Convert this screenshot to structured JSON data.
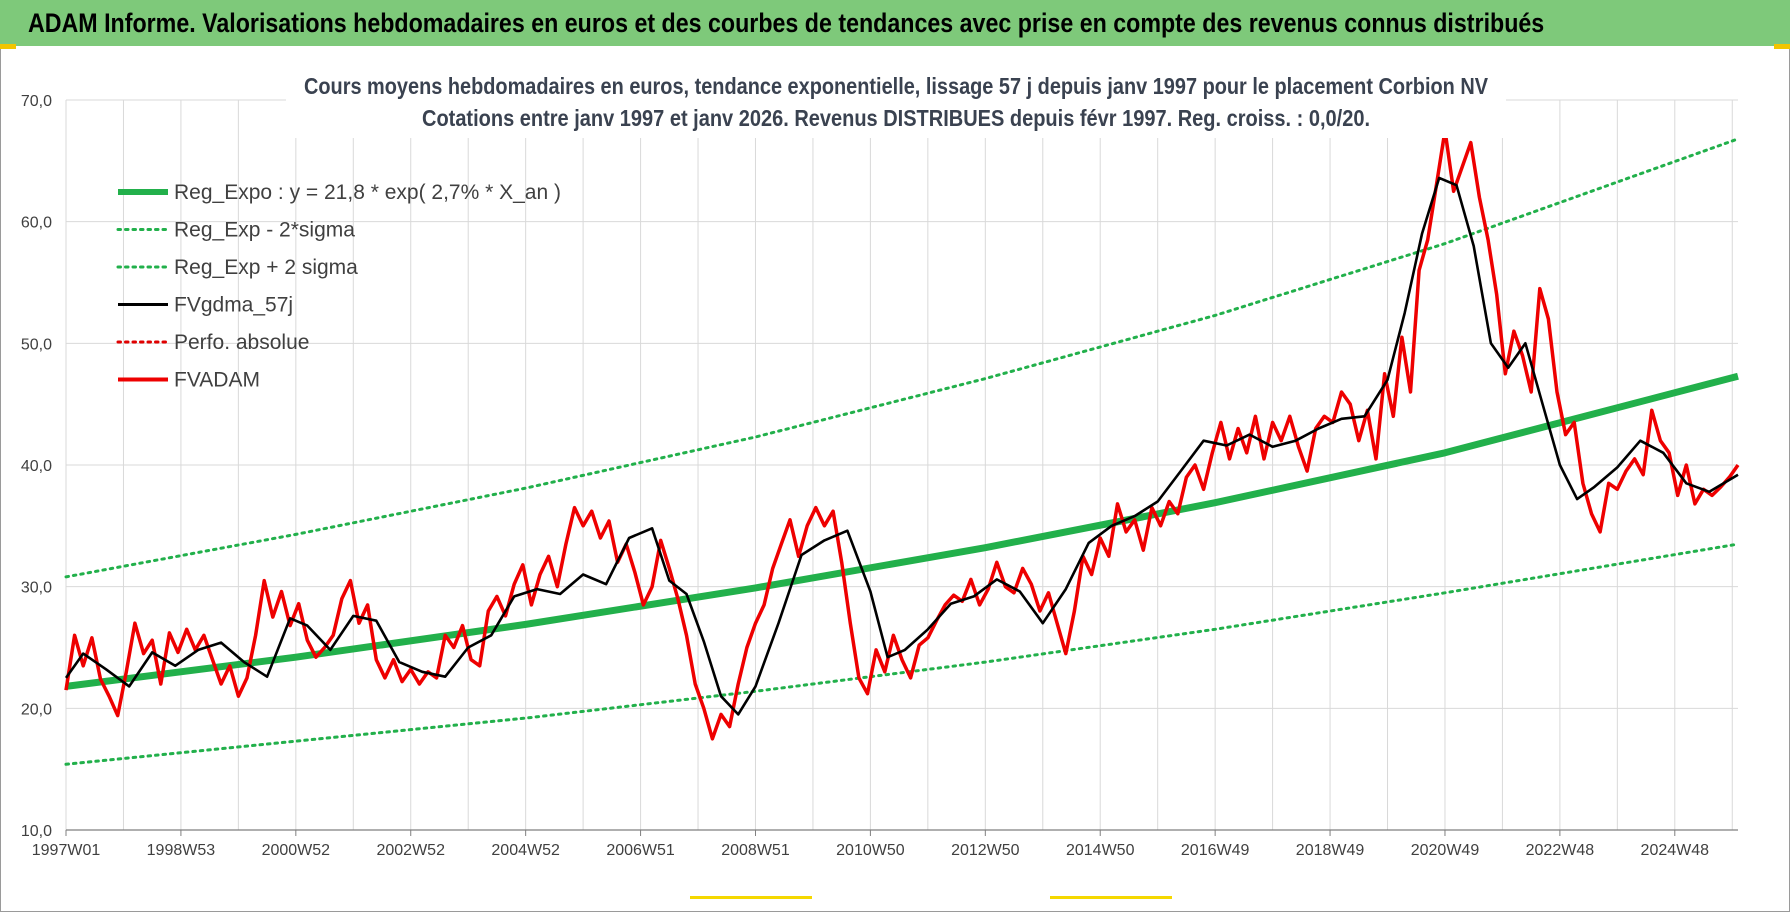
{
  "banner": {
    "title": "ADAM Informe. Valorisations hebdomadaires en euros et des courbes de tendances avec prise en compte des revenus connus distribués",
    "bg_color": "#7ec97a"
  },
  "chart_data": {
    "type": "line",
    "title_line1": "Cours moyens hebdomadaires en euros, tendance exponentielle, lissage 57 j depuis janv 1997 pour le placement Corbion NV",
    "title_line2": "Cotations entre janv 1997 et janv 2026. Revenus DISTRIBUES depuis févr 1997. Reg. croiss. : 0,0/20.",
    "xlim": [
      1997.0,
      2026.1
    ],
    "ylim": [
      10,
      70
    ],
    "y_ticks": [
      "10,0",
      "20,0",
      "30,0",
      "40,0",
      "50,0",
      "60,0",
      "70,0"
    ],
    "y_tick_values": [
      10,
      20,
      30,
      40,
      50,
      60,
      70
    ],
    "x_ticks": [
      "1997W01",
      "1998W53",
      "2000W52",
      "2002W52",
      "2004W52",
      "2006W51",
      "2008W51",
      "2010W50",
      "2012W50",
      "2014W50",
      "2016W49",
      "2018W49",
      "2020W49",
      "2022W48",
      "2024W48"
    ],
    "x_tick_values": [
      1997.0,
      1999.0,
      2001.0,
      2003.0,
      2005.0,
      2007.0,
      2009.0,
      2011.0,
      2013.0,
      2015.0,
      2017.0,
      2019.0,
      2021.0,
      2023.0,
      2025.0
    ],
    "gridlines": true,
    "legend_position": "top-left",
    "series": [
      {
        "name": "Reg_Expo : y = 21,8 * exp( 2,7% *  X_an )",
        "color": "#22b04b",
        "style": "solid-thick",
        "x": [
          1997.0,
          2001.0,
          2005.0,
          2009.0,
          2013.0,
          2017.0,
          2021.0,
          2026.1
        ],
        "values": [
          21.8,
          24.2,
          26.9,
          29.9,
          33.2,
          36.9,
          41.0,
          47.3
        ]
      },
      {
        "name": "Reg_Exp - 2*sigma",
        "color": "#22b04b",
        "style": "dotted",
        "x": [
          1997.0,
          2001.0,
          2005.0,
          2009.0,
          2013.0,
          2017.0,
          2021.0,
          2026.1
        ],
        "values": [
          15.4,
          17.3,
          19.2,
          21.4,
          23.8,
          26.5,
          29.5,
          33.5
        ]
      },
      {
        "name": "Reg_Exp + 2 sigma",
        "color": "#22b04b",
        "style": "dotted",
        "x": [
          1997.0,
          2001.0,
          2005.0,
          2009.0,
          2013.0,
          2017.0,
          2021.0,
          2026.1
        ],
        "values": [
          30.8,
          34.3,
          38.1,
          42.3,
          47.1,
          52.3,
          58.2,
          66.8
        ]
      },
      {
        "name": "FVgdma_57j",
        "color": "#000000",
        "style": "solid",
        "x": [
          1997.0,
          1997.3,
          1997.7,
          1998.1,
          1998.5,
          1998.9,
          1999.3,
          1999.7,
          2000.1,
          2000.5,
          2000.9,
          2001.2,
          2001.6,
          2002.0,
          2002.4,
          2002.8,
          2003.2,
          2003.6,
          2004.0,
          2004.4,
          2004.8,
          2005.2,
          2005.6,
          2006.0,
          2006.4,
          2006.8,
          2007.2,
          2007.5,
          2007.8,
          2008.1,
          2008.4,
          2008.7,
          2009.0,
          2009.4,
          2009.8,
          2010.2,
          2010.6,
          2011.0,
          2011.3,
          2011.6,
          2012.0,
          2012.4,
          2012.8,
          2013.2,
          2013.6,
          2014.0,
          2014.4,
          2014.8,
          2015.2,
          2015.6,
          2016.0,
          2016.4,
          2016.8,
          2017.2,
          2017.6,
          2018.0,
          2018.4,
          2018.8,
          2019.2,
          2019.6,
          2020.0,
          2020.3,
          2020.6,
          2020.9,
          2021.2,
          2021.5,
          2021.8,
          2022.1,
          2022.4,
          2022.7,
          2023.0,
          2023.3,
          2023.6,
          2024.0,
          2024.4,
          2024.8,
          2025.2,
          2025.6,
          2026.1
        ],
        "values": [
          22.5,
          24.5,
          23.2,
          21.8,
          24.6,
          23.5,
          24.8,
          25.4,
          23.8,
          22.6,
          27.4,
          26.8,
          24.8,
          27.6,
          27.2,
          23.8,
          23.0,
          22.6,
          25.0,
          26.0,
          29.2,
          29.8,
          29.4,
          31.0,
          30.2,
          34.0,
          34.8,
          30.5,
          29.4,
          25.5,
          21.0,
          19.5,
          21.8,
          27.0,
          32.6,
          33.8,
          34.6,
          29.6,
          24.2,
          24.8,
          26.5,
          28.6,
          29.2,
          30.6,
          29.6,
          27.0,
          29.8,
          33.6,
          35.0,
          35.8,
          37.0,
          39.5,
          42.0,
          41.6,
          42.5,
          41.5,
          42.0,
          43.0,
          43.8,
          44.0,
          47.0,
          52.5,
          59.0,
          63.6,
          63.0,
          58.0,
          50.0,
          48.0,
          50.0,
          45.0,
          40.0,
          37.2,
          38.2,
          39.8,
          42.0,
          41.0,
          38.5,
          37.8,
          39.2
        ]
      },
      {
        "name": "Perfo. absolue",
        "color": "#e00000",
        "style": "dotted",
        "x": [],
        "values": []
      },
      {
        "name": "FVADAM",
        "color": "#ee0000",
        "style": "solid-thick",
        "x": [
          1997.0,
          1997.15,
          1997.3,
          1997.45,
          1997.6,
          1997.75,
          1997.9,
          1998.05,
          1998.2,
          1998.35,
          1998.5,
          1998.65,
          1998.8,
          1998.95,
          1999.1,
          1999.25,
          1999.4,
          1999.55,
          1999.7,
          1999.85,
          2000.0,
          2000.15,
          2000.3,
          2000.45,
          2000.6,
          2000.75,
          2000.9,
          2001.05,
          2001.2,
          2001.35,
          2001.5,
          2001.65,
          2001.8,
          2001.95,
          2002.1,
          2002.25,
          2002.4,
          2002.55,
          2002.7,
          2002.85,
          2003.0,
          2003.15,
          2003.3,
          2003.45,
          2003.6,
          2003.75,
          2003.9,
          2004.05,
          2004.2,
          2004.35,
          2004.5,
          2004.65,
          2004.8,
          2004.95,
          2005.1,
          2005.25,
          2005.4,
          2005.55,
          2005.7,
          2005.85,
          2006.0,
          2006.15,
          2006.3,
          2006.45,
          2006.6,
          2006.75,
          2006.9,
          2007.05,
          2007.2,
          2007.35,
          2007.5,
          2007.65,
          2007.8,
          2007.95,
          2008.1,
          2008.25,
          2008.4,
          2008.55,
          2008.7,
          2008.85,
          2009.0,
          2009.15,
          2009.3,
          2009.45,
          2009.6,
          2009.75,
          2009.9,
          2010.05,
          2010.2,
          2010.35,
          2010.5,
          2010.65,
          2010.8,
          2010.95,
          2011.1,
          2011.25,
          2011.4,
          2011.55,
          2011.7,
          2011.85,
          2012.0,
          2012.15,
          2012.3,
          2012.45,
          2012.6,
          2012.75,
          2012.9,
          2013.05,
          2013.2,
          2013.35,
          2013.5,
          2013.65,
          2013.8,
          2013.95,
          2014.1,
          2014.25,
          2014.4,
          2014.55,
          2014.7,
          2014.85,
          2015.0,
          2015.15,
          2015.3,
          2015.45,
          2015.6,
          2015.75,
          2015.9,
          2016.05,
          2016.2,
          2016.35,
          2016.5,
          2016.65,
          2016.8,
          2016.95,
          2017.1,
          2017.25,
          2017.4,
          2017.55,
          2017.7,
          2017.85,
          2018.0,
          2018.15,
          2018.3,
          2018.45,
          2018.6,
          2018.75,
          2018.9,
          2019.05,
          2019.2,
          2019.35,
          2019.5,
          2019.65,
          2019.8,
          2019.95,
          2020.1,
          2020.25,
          2020.4,
          2020.55,
          2020.7,
          2020.85,
          2021.0,
          2021.15,
          2021.3,
          2021.45,
          2021.6,
          2021.75,
          2021.9,
          2022.05,
          2022.2,
          2022.35,
          2022.5,
          2022.65,
          2022.8,
          2022.95,
          2023.1,
          2023.25,
          2023.4,
          2023.55,
          2023.7,
          2023.85,
          2024.0,
          2024.15,
          2024.3,
          2024.45,
          2024.6,
          2024.75,
          2024.9,
          2025.05,
          2025.2,
          2025.35,
          2025.5,
          2025.65,
          2025.8,
          2025.95,
          2026.1
        ],
        "values": [
          21.5,
          26.0,
          23.5,
          25.8,
          22.4,
          21.0,
          19.4,
          23.0,
          27.0,
          24.5,
          25.6,
          22.0,
          26.2,
          24.6,
          26.5,
          24.8,
          26.0,
          24.0,
          22.0,
          23.5,
          21.0,
          22.5,
          26.0,
          30.5,
          27.5,
          29.6,
          26.8,
          28.6,
          25.6,
          24.2,
          25.0,
          26.0,
          29.0,
          30.5,
          27.0,
          28.5,
          24.0,
          22.5,
          24.0,
          22.2,
          23.2,
          22.0,
          23.0,
          22.5,
          26.0,
          25.0,
          26.8,
          24.0,
          23.5,
          28.0,
          29.2,
          27.6,
          30.2,
          31.8,
          28.5,
          31.0,
          32.5,
          30.0,
          33.5,
          36.5,
          35.0,
          36.2,
          34.0,
          35.4,
          32.0,
          33.5,
          31.2,
          28.5,
          30.0,
          33.8,
          31.5,
          29.0,
          26.0,
          22.0,
          20.0,
          17.5,
          19.5,
          18.5,
          22.0,
          25.0,
          27.0,
          28.5,
          31.5,
          33.5,
          35.5,
          32.5,
          35.0,
          36.5,
          35.0,
          36.2,
          32.0,
          27.0,
          22.5,
          21.2,
          24.8,
          23.0,
          26.0,
          24.0,
          22.5,
          25.2,
          25.8,
          27.2,
          28.5,
          29.3,
          28.8,
          30.6,
          28.5,
          29.8,
          32.0,
          30.0,
          29.5,
          31.5,
          30.2,
          28.0,
          29.5,
          27.0,
          24.5,
          28.0,
          32.5,
          31.0,
          34.0,
          32.5,
          36.8,
          34.5,
          35.5,
          33.0,
          36.5,
          35.0,
          37.0,
          36.0,
          39.0,
          40.0,
          38.0,
          41.0,
          43.5,
          40.5,
          43.0,
          41.0,
          44.0,
          40.5,
          43.5,
          42.0,
          44.0,
          41.5,
          39.5,
          43.0,
          44.0,
          43.5,
          46.0,
          45.0,
          42.0,
          44.5,
          40.5,
          47.5,
          44.0,
          50.5,
          46.0,
          56.0,
          58.5,
          63.0,
          67.5,
          62.5,
          64.5,
          66.5,
          62.0,
          58.5,
          54.0,
          47.5,
          51.0,
          49.0,
          46.0,
          54.5,
          52.0,
          46.0,
          42.5,
          43.5,
          38.5,
          36.0,
          34.5,
          38.5,
          38.0,
          39.5,
          40.5,
          39.2,
          44.5,
          42.0,
          41.0,
          37.5,
          40.0,
          36.8,
          38.0,
          37.5,
          38.2,
          39.0,
          40.0
        ]
      }
    ],
    "legend": [
      {
        "label": "Reg_Expo : y = 21,8 * exp( 2,7% *  X_an )",
        "color": "#22b04b",
        "style": "solid-thick"
      },
      {
        "label": "Reg_Exp - 2*sigma",
        "color": "#22b04b",
        "style": "dotted"
      },
      {
        "label": "Reg_Exp + 2 sigma",
        "color": "#22b04b",
        "style": "dotted"
      },
      {
        "label": "FVgdma_57j",
        "color": "#000000",
        "style": "solid"
      },
      {
        "label": "Perfo. absolue",
        "color": "#e00000",
        "style": "dotted"
      },
      {
        "label": "FVADAM",
        "color": "#ee0000",
        "style": "solid-thick"
      }
    ]
  }
}
